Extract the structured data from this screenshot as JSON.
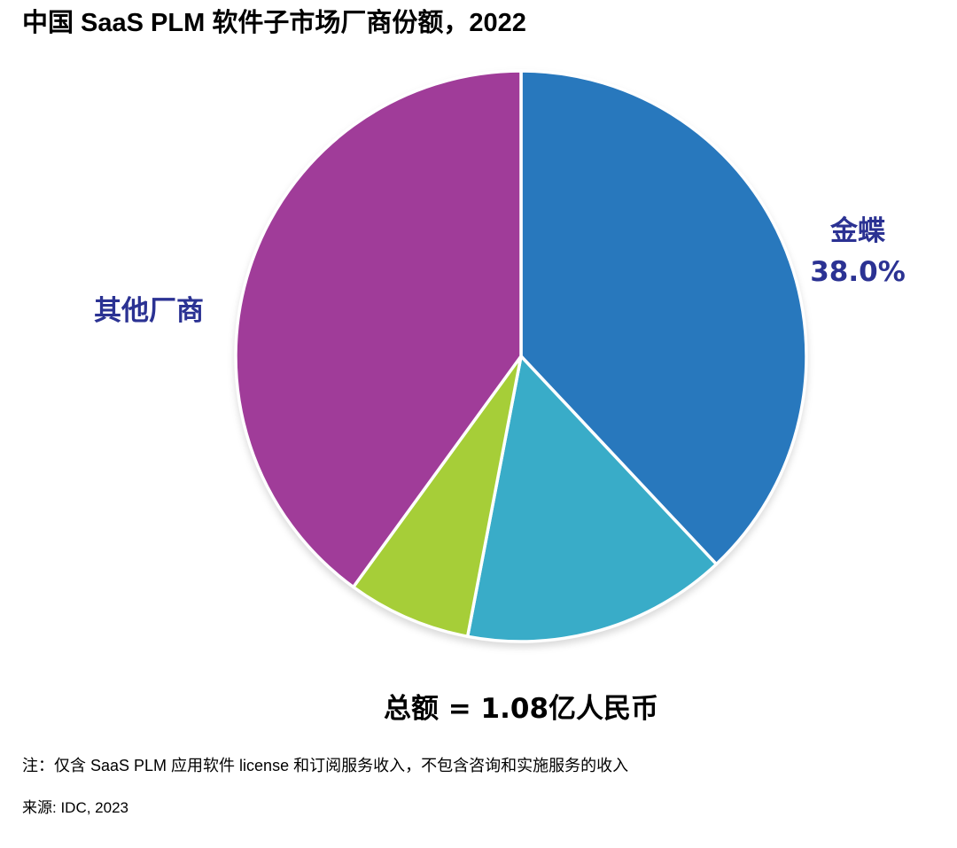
{
  "title": "中国 SaaS PLM 软件子市场厂商份额，2022",
  "chart_data": {
    "type": "pie",
    "title": "中国 SaaS PLM 软件子市场厂商份额，2022",
    "units": "percent of market",
    "start_angle_deg": 0,
    "direction": "clockwise",
    "segments": [
      {
        "name": "金蝶",
        "value_pct": 38.0,
        "display_pct": "38.0%",
        "color": "#2878BD",
        "labeled": true,
        "estimated": false
      },
      {
        "name": "",
        "value_pct": 15.0,
        "display_pct": "",
        "color": "#39ACC8",
        "labeled": false,
        "estimated": true
      },
      {
        "name": "",
        "value_pct": 7.0,
        "display_pct": "",
        "color": "#A6CE38",
        "labeled": false,
        "estimated": true
      },
      {
        "name": "其他厂商",
        "value_pct": 40.0,
        "display_pct": "",
        "color": "#A03C99",
        "labeled": true,
        "estimated": true
      }
    ],
    "total_label": "总额 = 1.08亿人民币",
    "total_value": "1.08亿人民币",
    "legend_position": "none",
    "grid": false
  },
  "footer": {
    "note": "注：仅含 SaaS PLM 应用软件 license 和订阅服务收入，不包含咨询和实施服务的收入",
    "source": "来源: IDC, 2023"
  },
  "colors": {
    "slice_blue": "#2878BD",
    "slice_teal": "#39ACC8",
    "slice_green": "#A6CE38",
    "slice_purple": "#A03C99",
    "slice_divider": "#FFFFFF",
    "label_text": "#2B3293",
    "title_text": "#000000"
  }
}
